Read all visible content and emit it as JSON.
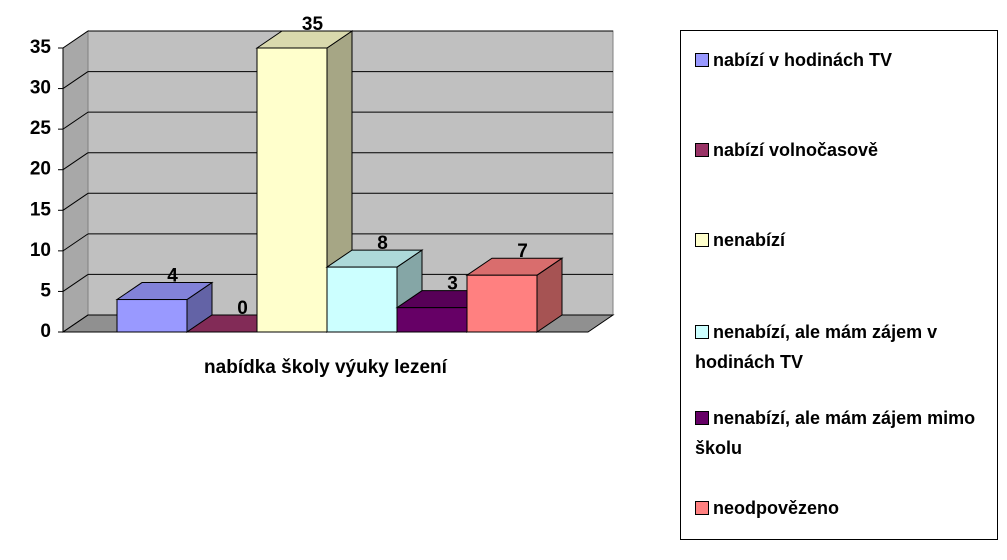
{
  "chart_data": {
    "type": "bar3d",
    "categories": [
      "nabídka školy výuky lezení"
    ],
    "series": [
      {
        "name": "nabízí v hodinách TV",
        "color": "#9999ff",
        "values": [
          4
        ]
      },
      {
        "name": "nabízí volnočasově",
        "color": "#993366",
        "values": [
          0
        ]
      },
      {
        "name": "nenabízí",
        "color": "#ffffcc",
        "values": [
          35
        ]
      },
      {
        "name": "nenabízí, ale mám zájem v hodinách TV",
        "color": "#ccffff",
        "values": [
          8
        ]
      },
      {
        "name": "nenabízí, ale mám zájem mimo školu",
        "color": "#660066",
        "values": [
          3
        ]
      },
      {
        "name": "neodpovězeno",
        "color": "#ff8080",
        "values": [
          7
        ]
      }
    ],
    "ylim": [
      0,
      35
    ],
    "yticks": [
      0,
      5,
      10,
      15,
      20,
      25,
      30,
      35
    ],
    "grid": true,
    "legend": "right"
  }
}
